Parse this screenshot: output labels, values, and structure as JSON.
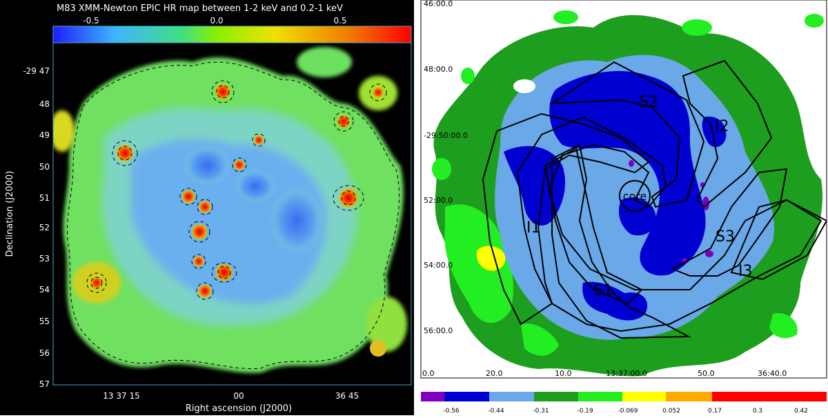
{
  "left_map": {
    "title": "M83 XMM-Newton EPIC HR map between 1-2 keV and 0.2-1 keV",
    "colorbar": {
      "ticks": [
        "-0.5",
        "0.0",
        "0.5"
      ],
      "colors": [
        "#1e1eff",
        "#3fb3ff",
        "#40e080",
        "#8cf000",
        "#f0e000",
        "#f08000",
        "#ff0000"
      ]
    },
    "xlabel": "Right ascension (J2000)",
    "ylabel": "Declination (J2000)",
    "x_ticks": [
      "13 37 15",
      "00",
      "36 45"
    ],
    "y_ticks": [
      "-29 47",
      "48",
      "49",
      "50",
      "51",
      "52",
      "53",
      "54",
      "55",
      "56",
      "57"
    ]
  },
  "right_map": {
    "y_ticks": [
      "46:00.0",
      "48:00.0",
      "-29:50:00.0",
      "52:00.0",
      "54:00.0",
      "56:00.0"
    ],
    "x_ticks": [
      "0.0",
      "20.0",
      "10.0",
      "13:37:00.0",
      "50.0",
      "36:40.0"
    ],
    "region_labels": [
      "S2",
      "I2",
      "core",
      "S3",
      "I1",
      "I3",
      "S1"
    ],
    "colorbar": {
      "colors": [
        "#7f00c0",
        "#0000d0",
        "#6aa8e8",
        "#1e9e1e",
        "#22ee22",
        "#ffff00",
        "#ffaa00",
        "#ff0000"
      ],
      "labels": [
        "-0.56",
        "-0.44",
        "-0.31",
        "-0.19",
        "-0.069",
        "0.052",
        "0.17",
        "0.3",
        "0.42"
      ]
    }
  }
}
